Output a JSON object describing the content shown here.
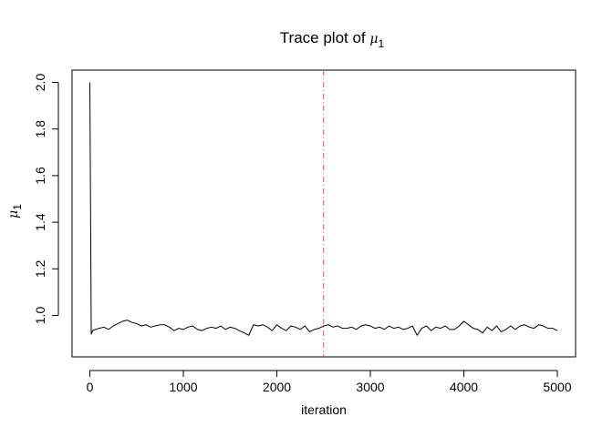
{
  "chart_data": {
    "type": "line",
    "title": {
      "text": "Trace plot of ",
      "symbol": "μ",
      "subscript": "1"
    },
    "xlabel": "iteration",
    "ylabel": {
      "symbol": "μ",
      "subscript": "1"
    },
    "xlim": [
      0,
      5000
    ],
    "ylim": [
      0.9,
      2.0
    ],
    "x_ticks": [
      0,
      1000,
      2000,
      3000,
      4000,
      5000
    ],
    "x_tick_labels": [
      "0",
      "1000",
      "2000",
      "3000",
      "4000",
      "5000"
    ],
    "y_ticks": [
      1.0,
      1.2,
      1.4,
      1.6,
      1.8,
      2.0
    ],
    "y_tick_labels": [
      "1.0",
      "1.2",
      "1.4",
      "1.6",
      "1.8",
      "2.0"
    ],
    "grid": false,
    "legend": "none",
    "reference_line": {
      "x": 2500,
      "style": "dash-dot",
      "color": "#df536b"
    },
    "series": [
      {
        "color": "#000000",
        "x": [
          0,
          15,
          30,
          60,
          100,
          150,
          200,
          250,
          300,
          350,
          400,
          450,
          500,
          550,
          600,
          650,
          700,
          750,
          800,
          850,
          900,
          950,
          1000,
          1050,
          1100,
          1150,
          1200,
          1250,
          1300,
          1350,
          1400,
          1450,
          1500,
          1550,
          1600,
          1650,
          1700,
          1750,
          1800,
          1850,
          1900,
          1950,
          2000,
          2050,
          2100,
          2150,
          2200,
          2250,
          2300,
          2350,
          2400,
          2450,
          2500,
          2550,
          2600,
          2650,
          2700,
          2750,
          2800,
          2850,
          2900,
          2950,
          3000,
          3050,
          3100,
          3150,
          3200,
          3250,
          3300,
          3350,
          3400,
          3450,
          3500,
          3550,
          3600,
          3650,
          3700,
          3750,
          3800,
          3850,
          3900,
          3950,
          4000,
          4050,
          4100,
          4150,
          4200,
          4250,
          4300,
          4350,
          4400,
          4450,
          4500,
          4550,
          4600,
          4650,
          4700,
          4750,
          4800,
          4850,
          4900,
          4950,
          5000
        ],
        "y": [
          2.0,
          0.92,
          0.935,
          0.94,
          0.945,
          0.95,
          0.94,
          0.955,
          0.965,
          0.975,
          0.98,
          0.97,
          0.965,
          0.955,
          0.96,
          0.95,
          0.955,
          0.96,
          0.96,
          0.95,
          0.935,
          0.945,
          0.94,
          0.95,
          0.955,
          0.94,
          0.935,
          0.945,
          0.95,
          0.945,
          0.955,
          0.94,
          0.95,
          0.945,
          0.935,
          0.925,
          0.915,
          0.96,
          0.955,
          0.96,
          0.95,
          0.935,
          0.96,
          0.945,
          0.935,
          0.955,
          0.95,
          0.94,
          0.955,
          0.93,
          0.94,
          0.945,
          0.955,
          0.96,
          0.95,
          0.955,
          0.945,
          0.945,
          0.95,
          0.94,
          0.955,
          0.96,
          0.955,
          0.945,
          0.95,
          0.94,
          0.955,
          0.945,
          0.95,
          0.94,
          0.945,
          0.955,
          0.915,
          0.945,
          0.955,
          0.935,
          0.95,
          0.945,
          0.955,
          0.94,
          0.94,
          0.955,
          0.975,
          0.96,
          0.945,
          0.94,
          0.925,
          0.95,
          0.935,
          0.955,
          0.93,
          0.94,
          0.955,
          0.94,
          0.955,
          0.96,
          0.95,
          0.945,
          0.96,
          0.955,
          0.945,
          0.945,
          0.935
        ]
      }
    ]
  }
}
